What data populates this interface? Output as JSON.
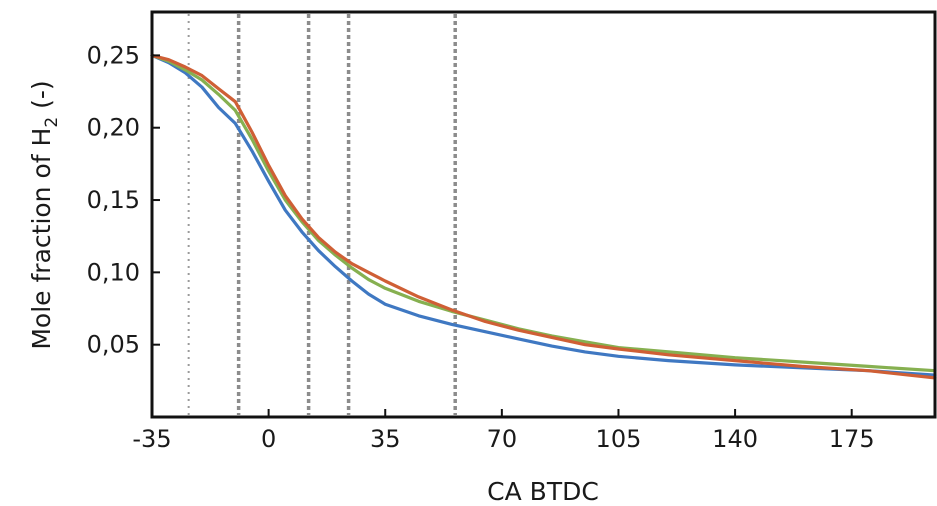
{
  "chart_data": {
    "type": "line",
    "title": "",
    "xlabel": "CA BTDC",
    "ylabel": {
      "prefix": "Mole fraction of H",
      "subscript": "2",
      "suffix": " (-)"
    },
    "xlim": [
      -35,
      200
    ],
    "ylim": [
      0,
      0.28
    ],
    "x_ticks": [
      -35,
      0,
      35,
      70,
      105,
      140,
      175
    ],
    "x_tick_labels": [
      "-35",
      "0",
      "35",
      "70",
      "105",
      "140",
      "175"
    ],
    "y_ticks": [
      0.05,
      0.1,
      0.15,
      0.2,
      0.25
    ],
    "y_tick_labels": [
      "0,05",
      "0,10",
      "0,15",
      "0,20",
      "0,25"
    ],
    "grid": false,
    "legend": "none",
    "vlines": [
      {
        "x": -24,
        "style": "dotted"
      },
      {
        "x": -9,
        "style": "dashed"
      },
      {
        "x": 12,
        "style": "dashed"
      },
      {
        "x": 24,
        "style": "dashed"
      },
      {
        "x": 56,
        "style": "dashed"
      }
    ],
    "series": [
      {
        "color": "#3f78c2",
        "x": [
          -35,
          -30,
          -25,
          -20,
          -15,
          -10,
          -5,
          0,
          5,
          10,
          15,
          20,
          25,
          30,
          35,
          45,
          55,
          65,
          75,
          85,
          95,
          105,
          120,
          140,
          160,
          180,
          200
        ],
        "y": [
          0.25,
          0.245,
          0.238,
          0.228,
          0.214,
          0.203,
          0.184,
          0.163,
          0.143,
          0.128,
          0.115,
          0.104,
          0.094,
          0.085,
          0.078,
          0.07,
          0.064,
          0.059,
          0.054,
          0.049,
          0.045,
          0.042,
          0.039,
          0.036,
          0.034,
          0.032,
          0.029
        ]
      },
      {
        "color": "#86b050",
        "x": [
          -35,
          -30,
          -25,
          -20,
          -15,
          -10,
          -5,
          0,
          5,
          10,
          15,
          20,
          25,
          30,
          35,
          45,
          55,
          65,
          75,
          85,
          95,
          105,
          120,
          140,
          160,
          180,
          200
        ],
        "y": [
          0.25,
          0.246,
          0.24,
          0.233,
          0.223,
          0.212,
          0.192,
          0.17,
          0.15,
          0.135,
          0.122,
          0.112,
          0.103,
          0.095,
          0.089,
          0.08,
          0.073,
          0.067,
          0.061,
          0.056,
          0.052,
          0.048,
          0.045,
          0.041,
          0.038,
          0.035,
          0.032
        ]
      },
      {
        "color": "#cf5f35",
        "x": [
          -35,
          -30,
          -25,
          -20,
          -15,
          -10,
          -5,
          0,
          5,
          10,
          15,
          20,
          25,
          30,
          35,
          45,
          55,
          65,
          75,
          85,
          95,
          105,
          120,
          140,
          160,
          180,
          200
        ],
        "y": [
          0.25,
          0.247,
          0.242,
          0.236,
          0.227,
          0.218,
          0.197,
          0.174,
          0.153,
          0.137,
          0.124,
          0.114,
          0.106,
          0.1,
          0.094,
          0.083,
          0.074,
          0.066,
          0.06,
          0.055,
          0.05,
          0.047,
          0.043,
          0.039,
          0.035,
          0.032,
          0.027
        ]
      }
    ]
  }
}
